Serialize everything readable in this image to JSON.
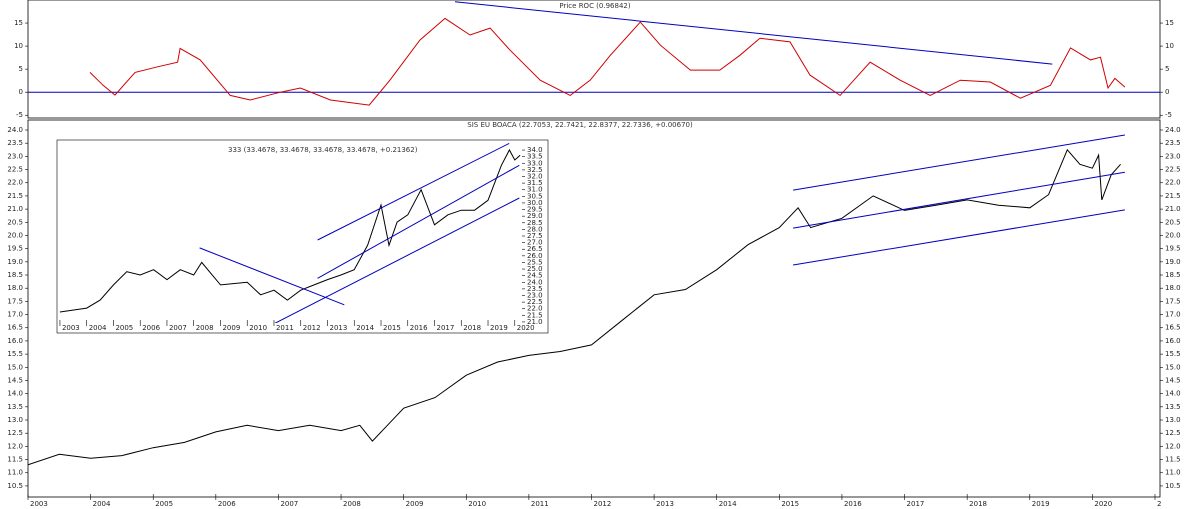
{
  "chart_data": [
    {
      "type": "line",
      "title": "Price ROC (0.96842)",
      "xlim": [
        2003,
        2021.08
      ],
      "ylim": [
        -5.6,
        20
      ],
      "yticks": [
        -5,
        0,
        5,
        10,
        15
      ],
      "zero_line": true,
      "series": [
        {
          "color": "#d00000",
          "x": [
            2003.99,
            2004.2,
            2004.39,
            2004.71,
            2005.07,
            2005.39,
            2005.43,
            2005.75,
            2006.23,
            2006.55,
            2007.03,
            2007.35,
            2007.83,
            2008.45,
            2008.78,
            2009.26,
            2009.66,
            2010.06,
            2010.38,
            2010.7,
            2011.18,
            2011.66,
            2011.98,
            2012.3,
            2012.78,
            2013.1,
            2013.58,
            2014.05,
            2014.37,
            2014.69,
            2015.17,
            2015.49,
            2015.97,
            2016.45,
            2016.93,
            2017.41,
            2017.89,
            2018.37,
            2018.85,
            2019.33,
            2019.65,
            2019.97,
            2020.13,
            2020.25,
            2020.36,
            2020.52
          ],
          "values": [
            4.3,
            1.5,
            -0.6,
            4.3,
            5.5,
            6.5,
            9.5,
            7,
            -0.7,
            -1.7,
            0,
            0.9,
            -1.7,
            -2.8,
            2.6,
            11.3,
            16,
            12.4,
            13.9,
            9.1,
            2.6,
            -0.7,
            2.6,
            8,
            15.2,
            10.2,
            4.8,
            4.8,
            8,
            11.7,
            10.9,
            3.7,
            -0.7,
            6.5,
            2.6,
            -0.7,
            2.6,
            2.2,
            -1.3,
            1.5,
            9.6,
            7,
            7.6,
            0.9,
            3,
            1.1
          ]
        },
        {
          "color": "#0000c0",
          "x": [
            2009.82,
            2019.36
          ],
          "values": [
            19.6,
            6.1
          ]
        }
      ]
    },
    {
      "type": "line",
      "title": "SIS EU BOACA (22.7053, 22.7421, 22.8377, 22.7336, +0.00670)",
      "xlim": [
        2003,
        2021.08
      ],
      "ylim": [
        10.08,
        24.38
      ],
      "xticks": [
        2003,
        2004,
        2005,
        2006,
        2007,
        2008,
        2009,
        2010,
        2011,
        2012,
        2013,
        2014,
        2015,
        2016,
        2017,
        2018,
        2019,
        2020,
        {
          "value": 2021,
          "label": "2"
        }
      ],
      "yticks": [
        10.5,
        {
          "value": 11,
          "label": "11.0"
        },
        11.5,
        {
          "value": 12,
          "label": "12.0"
        },
        12.5,
        {
          "value": 13,
          "label": "13.0"
        },
        13.5,
        {
          "value": 14,
          "label": "14.0"
        },
        14.5,
        {
          "value": 15,
          "label": "15.0"
        },
        15.5,
        {
          "value": 16,
          "label": "16.0"
        },
        16.5,
        {
          "value": 17,
          "label": "17.0"
        },
        17.5,
        {
          "value": 18,
          "label": "18.0"
        },
        18.5,
        {
          "value": 19,
          "label": "19.0"
        },
        19.5,
        {
          "value": 20,
          "label": "20.0"
        },
        20.5,
        {
          "value": 21,
          "label": "21.0"
        },
        21.5,
        {
          "value": 22,
          "label": "22.0"
        },
        22.5,
        {
          "value": 23,
          "label": "23.0"
        },
        23.5,
        {
          "value": 24,
          "label": "24.0"
        }
      ],
      "series": [
        {
          "color": "#000000",
          "x": [
            2003,
            2003.5,
            2004,
            2004.5,
            2005,
            2005.5,
            2006,
            2006.5,
            2007,
            2007.5,
            2008,
            2008.3,
            2008.5,
            2009,
            2009.5,
            2010,
            2010.5,
            2011,
            2011.5,
            2012,
            2012.5,
            2013,
            2013.5,
            2014,
            2014.5,
            2015,
            2015.3,
            2015.5,
            2016,
            2016.5,
            2017,
            2017.5,
            2018,
            2018.5,
            2019,
            2019.3,
            2019.6,
            2019.8,
            2020,
            2020.1,
            2020.15,
            2020.3,
            2020.45
          ],
          "values": [
            11.3,
            11.7,
            11.55,
            11.65,
            11.95,
            12.15,
            12.55,
            12.8,
            12.6,
            12.8,
            12.6,
            12.8,
            12.2,
            13.45,
            13.85,
            14.7,
            15.2,
            15.45,
            15.6,
            15.85,
            16.8,
            17.75,
            17.95,
            18.7,
            19.65,
            20.3,
            21.05,
            20.3,
            20.65,
            21.5,
            20.95,
            21.15,
            21.35,
            21.15,
            21.05,
            21.55,
            23.25,
            22.7,
            22.55,
            23.05,
            21.35,
            22.3,
            22.7
          ]
        },
        {
          "color": "#0000c0",
          "x": [
            2015.22,
            2020.52
          ],
          "values": [
            21.72,
            23.81
          ]
        },
        {
          "color": "#0000c0",
          "x": [
            2015.22,
            2020.52
          ],
          "values": [
            20.28,
            22.4
          ]
        },
        {
          "color": "#0000c0",
          "x": [
            2015.22,
            2020.52
          ],
          "values": [
            18.88,
            20.97
          ]
        }
      ]
    },
    {
      "type": "line",
      "title": "333 (33.4678, 33.4678, 33.4678, 33.4678, +0.21362)",
      "xlim": [
        2002.89,
        2020.27
      ],
      "ylim": [
        20.92,
        34.76
      ],
      "xticks": [
        2003,
        2004,
        2005,
        2006,
        2007,
        2008,
        2009,
        2010,
        2011,
        2012,
        2013,
        2014,
        2015,
        2016,
        2017,
        2018,
        2019,
        2020
      ],
      "yticks": [
        {
          "value": 21,
          "label": "21.0"
        },
        21.5,
        {
          "value": 22,
          "label": "22.0"
        },
        22.5,
        {
          "value": 23,
          "label": "23.0"
        },
        23.5,
        {
          "value": 24,
          "label": "24.0"
        },
        24.5,
        {
          "value": 25,
          "label": "25.0"
        },
        25.5,
        {
          "value": 26,
          "label": "26.0"
        },
        26.5,
        {
          "value": 27,
          "label": "27.0"
        },
        27.5,
        {
          "value": 28,
          "label": "28.0"
        },
        28.5,
        {
          "value": 29,
          "label": "29.0"
        },
        29.5,
        {
          "value": 30,
          "label": "30.0"
        },
        30.5,
        {
          "value": 31,
          "label": "31.0"
        },
        31.5,
        {
          "value": 32,
          "label": "32.0"
        },
        32.5,
        {
          "value": 33,
          "label": "33.0"
        },
        33.5,
        {
          "value": 34,
          "label": "34.0"
        }
      ],
      "series": [
        {
          "color": "#000000",
          "x": [
            2003,
            2004,
            2004.5,
            2005,
            2005.5,
            2006,
            2006.5,
            2007,
            2007.5,
            2008,
            2008.3,
            2009,
            2010,
            2010.5,
            2011,
            2011.5,
            2012,
            2012.5,
            2013,
            2013.5,
            2014,
            2014.5,
            2015,
            2015.3,
            2015.6,
            2016,
            2016.5,
            2017,
            2017.5,
            2018,
            2018.5,
            2019,
            2019.5,
            2019.8,
            2020,
            2020.2
          ],
          "values": [
            21.75,
            22.05,
            22.65,
            23.8,
            24.8,
            24.55,
            24.95,
            24.2,
            24.95,
            24.55,
            25.5,
            23.8,
            24,
            23.05,
            23.4,
            22.65,
            23.4,
            23.8,
            24.2,
            24.55,
            24.95,
            26.8,
            29.85,
            26.8,
            28.55,
            29.1,
            31,
            28.35,
            29.1,
            29.45,
            29.45,
            30.2,
            32.85,
            34,
            33.25,
            33.6
          ]
        },
        {
          "color": "#0000c0",
          "x": [
            2012.63,
            2019.79
          ],
          "values": [
            27.2,
            34.5
          ]
        },
        {
          "color": "#0000c0",
          "x": [
            2012.63,
            2020.17
          ],
          "values": [
            24.3,
            32.85
          ]
        },
        {
          "color": "#0000c0",
          "x": [
            2010.91,
            2020.17
          ],
          "values": [
            20.77,
            30.37
          ]
        },
        {
          "color": "#0000c0",
          "x": [
            2008.22,
            2013.63
          ],
          "values": [
            26.6,
            22.3
          ]
        }
      ]
    }
  ]
}
